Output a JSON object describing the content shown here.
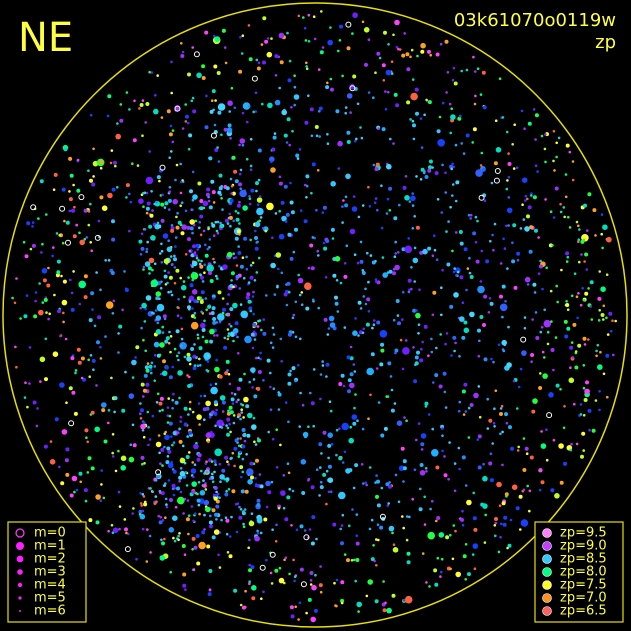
{
  "header": {
    "label": "NE",
    "frame": "03k61070o0119w",
    "mode": "zp"
  },
  "magnitude_legend": [
    "m=0",
    "m=1",
    "m=2",
    "m=3",
    "m=4",
    "m=5",
    "m=6"
  ],
  "zp_legend": [
    "zp=9.5",
    "zp=9.0",
    "zp=8.5",
    "zp=8.0",
    "zp=7.5",
    "zp=7.0",
    "zp=6.5"
  ]
}
